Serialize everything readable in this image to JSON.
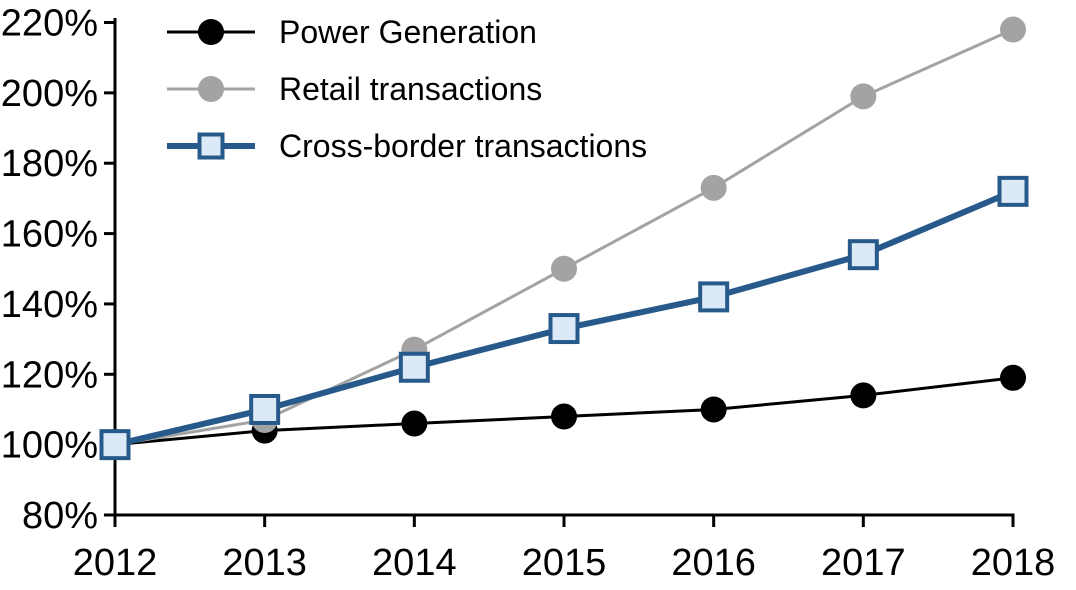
{
  "chart_data": {
    "type": "line",
    "title": "",
    "xlabel": "",
    "ylabel": "",
    "grid": false,
    "legend_position": "top-left",
    "x": [
      2012,
      2013,
      2014,
      2015,
      2016,
      2017,
      2018
    ],
    "x_tick_labels": [
      "2012",
      "2013",
      "2014",
      "2015",
      "2016",
      "2017",
      "2018"
    ],
    "ylim": [
      80,
      220
    ],
    "y_tick_step": 20,
    "y_tick_labels": [
      "80%",
      "100%",
      "120%",
      "140%",
      "160%",
      "180%",
      "200%",
      "220%"
    ],
    "series": [
      {
        "name": "Power Generation",
        "values": [
          100,
          104,
          106,
          108,
          110,
          114,
          119
        ],
        "color": "#000000",
        "marker": "circle",
        "marker_fill": "#000000",
        "line_width": 3
      },
      {
        "name": "Retail transactions",
        "values": [
          100,
          107,
          127,
          150,
          173,
          199,
          218
        ],
        "color": "#A3A3A3",
        "marker": "circle",
        "marker_fill": "#A3A3A3",
        "line_width": 3
      },
      {
        "name": "Cross-border transactions",
        "values": [
          100,
          110,
          122,
          133,
          142,
          154,
          172
        ],
        "color": "#275A8B",
        "marker": "square",
        "marker_fill": "#DCE9F6",
        "line_width": 6
      }
    ],
    "axis_color": "#000000"
  }
}
